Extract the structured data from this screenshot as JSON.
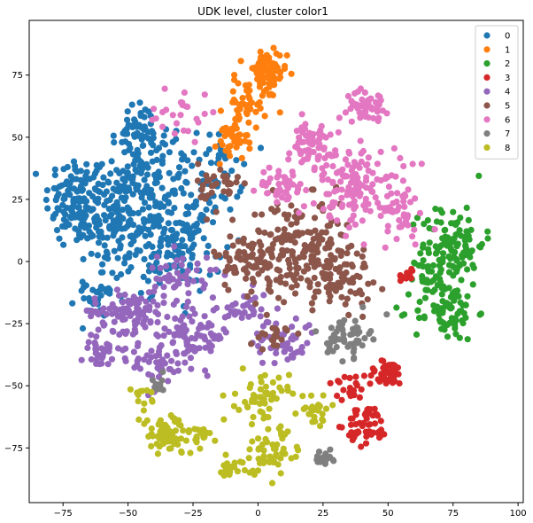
{
  "chart_data": {
    "type": "scatter",
    "title": "UDK level, cluster color1",
    "xlabel": "",
    "ylabel": "",
    "xlim": [
      -88,
      102
    ],
    "ylim": [
      -97,
      97
    ],
    "x_ticks": [
      -75,
      -50,
      -25,
      0,
      25,
      50,
      75,
      100
    ],
    "y_ticks": [
      -75,
      -50,
      -25,
      0,
      25,
      50,
      75
    ],
    "grid": false,
    "legend_position": "top-right",
    "series": [
      {
        "name": "0",
        "color": "#1f77b4",
        "clusters": [
          {
            "cx": -70,
            "cy": 25,
            "sx": 6,
            "sy": 9,
            "n": 120
          },
          {
            "cx": -55,
            "cy": 15,
            "sx": 8,
            "sy": 10,
            "n": 150
          },
          {
            "cx": -45,
            "cy": 35,
            "sx": 7,
            "sy": 9,
            "n": 110
          },
          {
            "cx": -35,
            "cy": 5,
            "sx": 7,
            "sy": 8,
            "n": 90
          },
          {
            "cx": -45,
            "cy": 52,
            "sx": 5,
            "sy": 6,
            "n": 45
          },
          {
            "cx": -20,
            "cy": 35,
            "sx": 7,
            "sy": 8,
            "n": 70
          },
          {
            "cx": -60,
            "cy": -12,
            "sx": 5,
            "sy": 5,
            "n": 30
          },
          {
            "cx": -25,
            "cy": 10,
            "sx": 6,
            "sy": 8,
            "n": 50
          }
        ]
      },
      {
        "name": "1",
        "color": "#ff7f0e",
        "clusters": [
          {
            "cx": 3,
            "cy": 75,
            "sx": 4,
            "sy": 5,
            "n": 70
          },
          {
            "cx": -5,
            "cy": 63,
            "sx": 4,
            "sy": 5,
            "n": 45
          },
          {
            "cx": -10,
            "cy": 48,
            "sx": 3,
            "sy": 4,
            "n": 35
          }
        ]
      },
      {
        "name": "2",
        "color": "#2ca02c",
        "clusters": [
          {
            "cx": 75,
            "cy": 7,
            "sx": 6,
            "sy": 8,
            "n": 110
          },
          {
            "cx": 72,
            "cy": -20,
            "sx": 6,
            "sy": 6,
            "n": 75
          },
          {
            "cx": 66,
            "cy": -5,
            "sx": 3,
            "sy": 4,
            "n": 25
          }
        ]
      },
      {
        "name": "3",
        "color": "#d62728",
        "clusters": [
          {
            "cx": 50,
            "cy": -45,
            "sx": 4,
            "sy": 2.5,
            "n": 45
          },
          {
            "cx": 42,
            "cy": -66,
            "sx": 4,
            "sy": 4,
            "n": 55
          },
          {
            "cx": 35,
            "cy": -50,
            "sx": 5,
            "sy": 3,
            "n": 20
          },
          {
            "cx": 58,
            "cy": -5,
            "sx": 2,
            "sy": 2,
            "n": 10
          }
        ]
      },
      {
        "name": "4",
        "color": "#9467bd",
        "clusters": [
          {
            "cx": -50,
            "cy": -20,
            "sx": 7,
            "sy": 4,
            "n": 90
          },
          {
            "cx": -25,
            "cy": -30,
            "sx": 7,
            "sy": 6,
            "n": 90
          },
          {
            "cx": -60,
            "cy": -35,
            "sx": 4,
            "sy": 4,
            "n": 40
          },
          {
            "cx": -40,
            "cy": -42,
            "sx": 5,
            "sy": 5,
            "n": 40
          },
          {
            "cx": 10,
            "cy": -32,
            "sx": 6,
            "sy": 5,
            "n": 50
          },
          {
            "cx": -5,
            "cy": -20,
            "sx": 5,
            "sy": 4,
            "n": 35
          },
          {
            "cx": -30,
            "cy": -5,
            "sx": 6,
            "sy": 5,
            "n": 45
          }
        ]
      },
      {
        "name": "5",
        "color": "#8c564b",
        "clusters": [
          {
            "cx": 15,
            "cy": 5,
            "sx": 10,
            "sy": 10,
            "n": 170
          },
          {
            "cx": 30,
            "cy": -5,
            "sx": 7,
            "sy": 7,
            "n": 90
          },
          {
            "cx": -5,
            "cy": 0,
            "sx": 6,
            "sy": 6,
            "n": 60
          },
          {
            "cx": -15,
            "cy": 30,
            "sx": 4,
            "sy": 5,
            "n": 35
          },
          {
            "cx": 5,
            "cy": -30,
            "sx": 4,
            "sy": 3,
            "n": 20
          }
        ]
      },
      {
        "name": "6",
        "color": "#e377c2",
        "clusters": [
          {
            "cx": 40,
            "cy": 30,
            "sx": 8,
            "sy": 8,
            "n": 130
          },
          {
            "cx": 20,
            "cy": 45,
            "sx": 7,
            "sy": 6,
            "n": 70
          },
          {
            "cx": 42,
            "cy": 63,
            "sx": 4,
            "sy": 3,
            "n": 45
          },
          {
            "cx": 10,
            "cy": 30,
            "sx": 5,
            "sy": 4,
            "n": 40
          },
          {
            "cx": -30,
            "cy": 60,
            "sx": 6,
            "sy": 6,
            "n": 25
          },
          {
            "cx": 55,
            "cy": 18,
            "sx": 5,
            "sy": 6,
            "n": 35
          }
        ]
      },
      {
        "name": "7",
        "color": "#7f7f7f",
        "clusters": [
          {
            "cx": 35,
            "cy": -30,
            "sx": 4,
            "sy": 4,
            "n": 55
          },
          {
            "cx": 25,
            "cy": -79,
            "sx": 2,
            "sy": 1.5,
            "n": 20
          },
          {
            "cx": -38,
            "cy": -50,
            "sx": 2,
            "sy": 2,
            "n": 10
          }
        ]
      },
      {
        "name": "8",
        "color": "#bcbd22",
        "clusters": [
          {
            "cx": -35,
            "cy": -70,
            "sx": 5,
            "sy": 4,
            "n": 80
          },
          {
            "cx": 2,
            "cy": -55,
            "sx": 5,
            "sy": 5,
            "n": 55
          },
          {
            "cx": 5,
            "cy": -77,
            "sx": 6,
            "sy": 5,
            "n": 55
          },
          {
            "cx": 22,
            "cy": -60,
            "sx": 3,
            "sy": 3,
            "n": 25
          },
          {
            "cx": -22,
            "cy": -70,
            "sx": 3,
            "sy": 2,
            "n": 15
          },
          {
            "cx": -45,
            "cy": -55,
            "sx": 2,
            "sy": 2,
            "n": 12
          },
          {
            "cx": -10,
            "cy": -82,
            "sx": 3,
            "sy": 2,
            "n": 20
          }
        ]
      }
    ]
  }
}
